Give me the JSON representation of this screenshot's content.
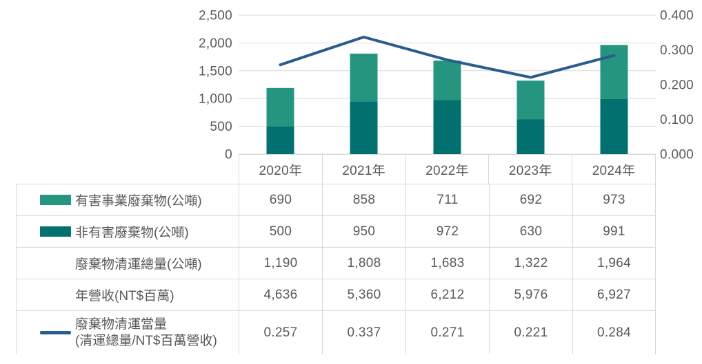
{
  "colors": {
    "hazardous": "#259580",
    "nonhazardous": "#02706F",
    "line": "#2B5C8F",
    "grid": "#D9D9D9",
    "border": "#D9D9D9",
    "text": "#595959"
  },
  "chart_data": {
    "type": "bar",
    "subtype": "stacked-bars-with-line-overlay-dual-axis",
    "title": "",
    "categories": [
      "2020年",
      "2021年",
      "2022年",
      "2023年",
      "2024年"
    ],
    "series": [
      {
        "name": "非有害廢棄物(公噸)",
        "type": "bar",
        "stack": "bottom",
        "axis": "left",
        "color": "#02706F",
        "values": [
          500,
          950,
          972,
          630,
          991
        ]
      },
      {
        "name": "有害事業廢棄物(公噸)",
        "type": "bar",
        "stack": "top",
        "axis": "left",
        "color": "#259580",
        "values": [
          690,
          858,
          711,
          692,
          973
        ]
      },
      {
        "name": "廢棄物清運當量(清運總量/NT$百萬營收)",
        "type": "line",
        "axis": "right",
        "color": "#2B5C8F",
        "values": [
          0.257,
          0.337,
          0.271,
          0.221,
          0.284
        ]
      }
    ],
    "stacked_totals": [
      1190,
      1808,
      1683,
      1322,
      1964
    ],
    "left_axis": {
      "range": [
        0,
        2500
      ],
      "ticks": [
        {
          "v": 0,
          "label": "0"
        },
        {
          "v": 500,
          "label": "500"
        },
        {
          "v": 1000,
          "label": "1,000"
        },
        {
          "v": 1500,
          "label": "1,500"
        },
        {
          "v": 2000,
          "label": "2,000"
        },
        {
          "v": 2500,
          "label": "2,500"
        }
      ]
    },
    "right_axis": {
      "range": [
        0,
        0.4
      ],
      "ticks": [
        {
          "v": 0,
          "label": "0.000"
        },
        {
          "v": 0.1,
          "label": "0.100"
        },
        {
          "v": 0.2,
          "label": "0.200"
        },
        {
          "v": 0.3,
          "label": "0.300"
        },
        {
          "v": 0.4,
          "label": "0.400"
        }
      ]
    },
    "grid": "horizontal",
    "legend_position": "table-rows-below-chart"
  },
  "table": {
    "rows": [
      {
        "label": "有害事業廢棄物(公噸)",
        "swatch": "hazardous",
        "values": [
          "690",
          "858",
          "711",
          "692",
          "973"
        ]
      },
      {
        "label": "非有害廢棄物(公噸)",
        "swatch": "nonhazardous",
        "values": [
          "500",
          "950",
          "972",
          "630",
          "991"
        ]
      },
      {
        "label": "廢棄物清運總量(公噸)",
        "swatch": "none",
        "values": [
          "1,190",
          "1,808",
          "1,683",
          "1,322",
          "1,964"
        ]
      },
      {
        "label": "年營收(NT$百萬)",
        "swatch": "none",
        "values": [
          "4,636",
          "5,360",
          "6,212",
          "5,976",
          "6,927"
        ]
      },
      {
        "label": "廢棄物清運當量",
        "label_line2": "(清運總量/NT$百萬營收)",
        "swatch": "line",
        "values": [
          "0.257",
          "0.337",
          "0.271",
          "0.221",
          "0.284"
        ]
      }
    ]
  }
}
